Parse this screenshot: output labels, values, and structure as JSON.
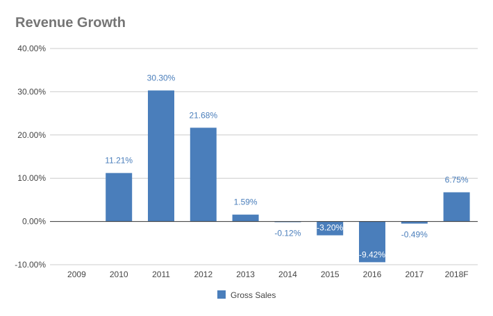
{
  "chart_data": {
    "type": "bar",
    "title": "Revenue Growth",
    "categories": [
      "2009",
      "2010",
      "2011",
      "2012",
      "2013",
      "2014",
      "2015",
      "2016",
      "2017",
      "2018F"
    ],
    "series": [
      {
        "name": "Gross Sales",
        "values": [
          null,
          11.21,
          30.3,
          21.68,
          1.59,
          -0.12,
          -3.2,
          -9.42,
          -0.49,
          6.75
        ],
        "data_labels": [
          "",
          "11.21%",
          "30.30%",
          "21.68%",
          "1.59%",
          "-0.12%",
          "-3.20%",
          "-9.42%",
          "-0.49%",
          "6.75%"
        ],
        "color": "#4a7ebb"
      }
    ],
    "ylim": [
      -10,
      40
    ],
    "yticks": [
      -10,
      0,
      10,
      20,
      30,
      40
    ],
    "ytick_labels": [
      "-10.00%",
      "0.00%",
      "10.00%",
      "20.00%",
      "30.00%",
      "40.00%"
    ],
    "grid": true,
    "legend_position": "bottom",
    "xlabel": "",
    "ylabel": ""
  },
  "colors": {
    "bar": "#4a7ebb",
    "grid": "#cccccc",
    "axis": "#333333",
    "label_outside": "#4a7ebb",
    "label_inside": "#ffffff"
  }
}
